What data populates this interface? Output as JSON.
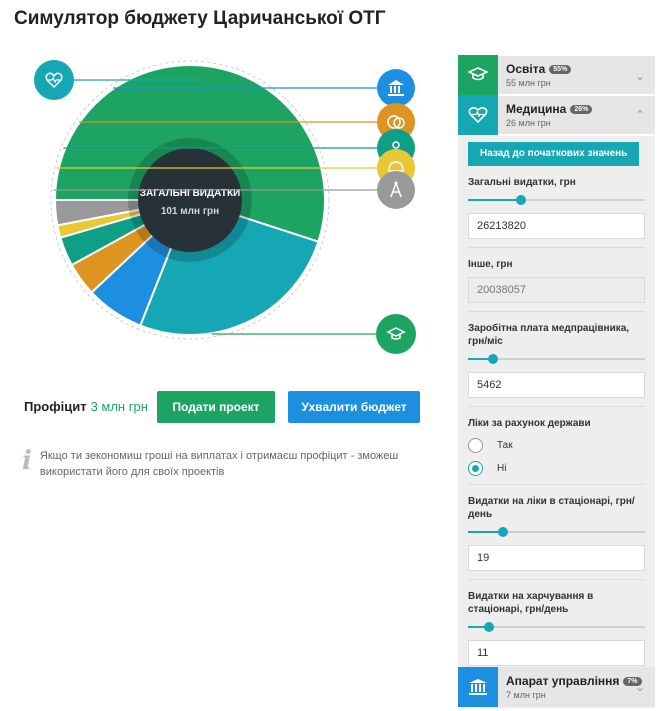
{
  "title": "Симулятор бюджету Царичанської ОТГ",
  "chart_data": {
    "type": "pie",
    "center_title": "ЗАГАЛЬНІ ВИДАТКИ",
    "center_value": "101 млн грн",
    "slices": [
      {
        "name": "Освіта",
        "percent": 55,
        "color": "#1ea462",
        "icon": "graduation-cap-icon"
      },
      {
        "name": "Медицина",
        "percent": 26,
        "color": "#16a7b5",
        "icon": "heart-pulse-icon"
      },
      {
        "name": "Апарат управління",
        "percent": 7,
        "color": "#1d8fe1",
        "icon": "building-icon"
      },
      {
        "name": "",
        "percent": 4,
        "color": "#dd9420",
        "icon": "theater-masks-icon"
      },
      {
        "name": "",
        "percent": 3.5,
        "color": "#0f9e86",
        "icon": "people-icon"
      },
      {
        "name": "",
        "percent": 1.5,
        "color": "#e8c935",
        "icon": "helmet-icon"
      },
      {
        "name": "",
        "percent": 3,
        "color": "#999999",
        "icon": "compass-icon"
      }
    ]
  },
  "profit": {
    "label": "Профіцит",
    "value": "3 млн грн"
  },
  "buttons": {
    "submit": "Подати проект",
    "approve": "Ухвалити бюджет"
  },
  "info_text": "Якщо ти зекономиш гроші на виплатах і отримаєш профіцит - зможеш використати його для своїх проектів",
  "sidebar": {
    "education": {
      "name": "Освіта",
      "badge": "55%",
      "sub": "55 млн грн",
      "color": "#1ea462"
    },
    "medicine": {
      "name": "Медицина",
      "badge": "26%",
      "sub": "26 млн грн",
      "color": "#16a7b5"
    },
    "admin": {
      "name": "Апарат управління",
      "badge": "7%",
      "sub": "7 млн грн",
      "color": "#1d8fe1"
    },
    "reset_label": "Назад до початкових значень",
    "fields": {
      "total": {
        "label": "Загальні видатки, грн",
        "value": "26213820",
        "level": 0.3
      },
      "other": {
        "label": "Інше, грн",
        "value": "20038057"
      },
      "salary": {
        "label": "Заробітна плата медпрацівника, грн/міс",
        "value": "5462",
        "level": 0.14
      },
      "meds_state": {
        "label": "Ліки за рахунок держави",
        "opt_yes": "Так",
        "opt_no": "Ні",
        "selected": "Ні"
      },
      "meds_hospital": {
        "label": "Видатки на ліки в стаціонарі, грн/день",
        "value": "19",
        "level": 0.2
      },
      "food_hospital": {
        "label": "Видатки на харчування в стаціонарі, грн/день",
        "value": "11",
        "level": 0.12
      }
    }
  }
}
